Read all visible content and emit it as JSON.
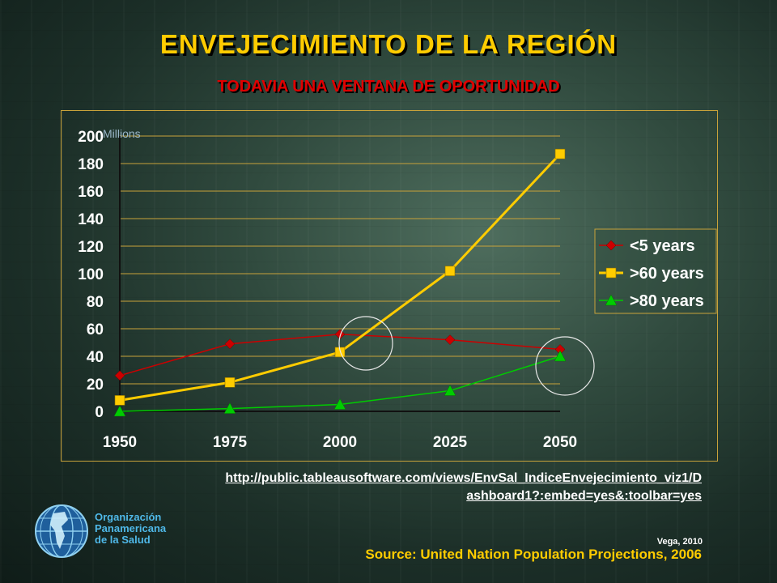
{
  "slide": {
    "title": "ENVEJECIMIENTO DE LA REGIÓN",
    "subtitle": "TODAVIA UNA VENTANA DE OPORTUNIDAD",
    "link_line1": "http://public.tableausoftware.com/views/EnvSal_IndiceEnvejecimiento_viz1/D",
    "link_line2": "ashboard1?:embed=yes&:toolbar=yes",
    "org_line1": "Organización",
    "org_line2": "Panamericana",
    "org_line3": "de la Salud",
    "credit": "Vega, 2010",
    "source": "Source:  United Nation Population Projections, 2006"
  },
  "colors": {
    "title": "#ffcc00",
    "subtitle": "#e00000",
    "series_lt5": "#cc0000",
    "series_gt60": "#ffcc00",
    "series_gt80": "#00cc00"
  },
  "chart_data": {
    "type": "line",
    "title": "",
    "xlabel": "",
    "ylabel": "Millions",
    "x": [
      1950,
      1975,
      2000,
      2025,
      2050
    ],
    "ylim": [
      0,
      200
    ],
    "yticks": [
      0,
      20,
      40,
      60,
      80,
      100,
      120,
      140,
      160,
      180,
      200
    ],
    "grid": true,
    "legend_position": "right",
    "series": [
      {
        "name": "<5 years",
        "marker": "diamond",
        "values": [
          26,
          49,
          56,
          52,
          45
        ]
      },
      {
        "name": ">60 years",
        "marker": "square",
        "values": [
          8,
          21,
          43,
          102,
          187
        ]
      },
      {
        "name": ">80 years",
        "marker": "triangle",
        "values": [
          0,
          2,
          5,
          15,
          40
        ]
      }
    ],
    "annotations": [
      "circle at 2000 near series crossover",
      "circle at 2050 on >80 years"
    ]
  }
}
